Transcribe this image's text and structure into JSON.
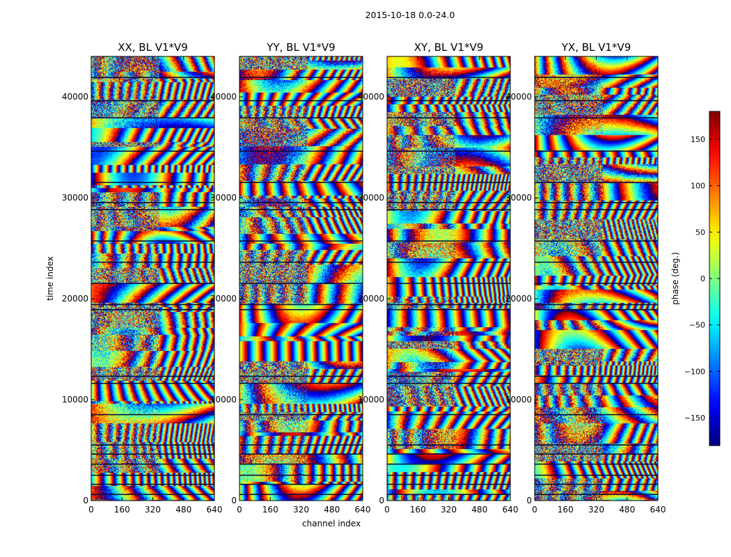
{
  "suptitle": "2015-10-18 0.0-24.0",
  "chart_data": {
    "type": "heatmap",
    "shared_xlabel": "channel index",
    "shared_ylabel": "time index",
    "xlim": [
      0,
      640
    ],
    "ylim": [
      0,
      44000
    ],
    "x_ticks": [
      0,
      160,
      320,
      480,
      640
    ],
    "y_ticks": [
      0,
      10000,
      20000,
      30000,
      40000
    ],
    "panels": [
      {
        "title": "XX, BL V1*V9",
        "polarization": "XX"
      },
      {
        "title": "YY, BL V1*V9",
        "polarization": "YY"
      },
      {
        "title": "XY, BL V1*V9",
        "polarization": "XY"
      },
      {
        "title": "YX, BL V1*V9",
        "polarization": "YX"
      }
    ],
    "colorbar": {
      "label": "phase (deg.)",
      "colormap": "jet",
      "range": [
        -180,
        180
      ],
      "ticks": [
        -150,
        -100,
        -50,
        0,
        50,
        100,
        150
      ],
      "tick_labels": [
        "−150",
        "−100",
        "−50",
        "0",
        "50",
        "100",
        "150"
      ]
    },
    "gap_rows_time_index": [
      600,
      1600,
      2500,
      3600,
      4600,
      5500,
      8500,
      11600,
      12300,
      18900,
      19400,
      21500,
      23600,
      25700,
      28800,
      29500,
      31500,
      34600,
      37900,
      39600,
      41900
    ]
  }
}
